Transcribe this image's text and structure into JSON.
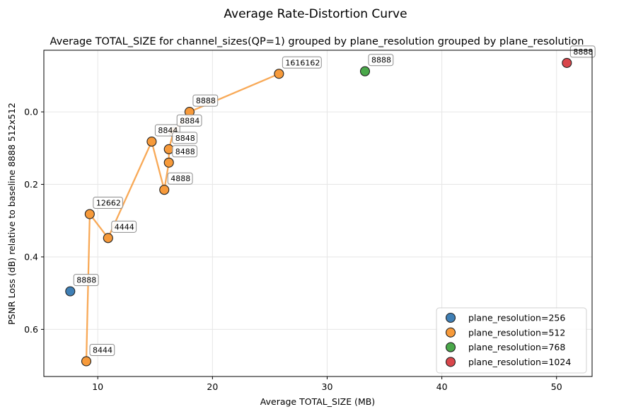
{
  "chart_data": {
    "type": "scatter",
    "title": "Average Rate-Distortion Curve",
    "subtitle": "Average TOTAL_SIZE for channel_sizes(QP=1) grouped by plane_resolution grouped by plane_resolution",
    "xlabel": "Average TOTAL_SIZE (MB)",
    "ylabel": "PSNR Loss (dB) relative to baseline 8888 512x512",
    "xlim": [
      5.3,
      53.1
    ],
    "ylim": [
      0.73,
      -0.17
    ],
    "y_inverted": true,
    "x_ticks": [
      10,
      20,
      30,
      40,
      50
    ],
    "y_ticks": [
      "0.0",
      "0.2",
      "0.4",
      "0.6"
    ],
    "y_tick_values": [
      0.0,
      0.2,
      0.4,
      0.6
    ],
    "grid": true,
    "legend_position": "lower-right",
    "series": [
      {
        "name": "plane_resolution=256",
        "color": "#3f7fb5",
        "line": false,
        "points": [
          {
            "x": 7.6,
            "y": 0.495,
            "label": "8888"
          }
        ]
      },
      {
        "name": "plane_resolution=512",
        "color": "#f79a3a",
        "line": true,
        "points": [
          {
            "x": 9.0,
            "y": 0.688,
            "label": "8444"
          },
          {
            "x": 9.3,
            "y": 0.282,
            "label": "12662"
          },
          {
            "x": 10.9,
            "y": 0.348,
            "label": "4444"
          },
          {
            "x": 14.7,
            "y": 0.082,
            "label": "8844"
          },
          {
            "x": 15.8,
            "y": 0.215,
            "label": "4888"
          },
          {
            "x": 16.2,
            "y": 0.14,
            "label": "8488"
          },
          {
            "x": 16.2,
            "y": 0.103,
            "label": "8848"
          },
          {
            "x": 16.6,
            "y": 0.055,
            "label": "8884"
          },
          {
            "x": 18.0,
            "y": 0.0,
            "label": "8888"
          },
          {
            "x": 25.8,
            "y": -0.105,
            "label": "1616162"
          }
        ]
      },
      {
        "name": "plane_resolution=768",
        "color": "#4aa84a",
        "line": false,
        "points": [
          {
            "x": 33.3,
            "y": -0.112,
            "label": "8888"
          }
        ]
      },
      {
        "name": "plane_resolution=1024",
        "color": "#d9464b",
        "line": false,
        "points": [
          {
            "x": 50.9,
            "y": -0.135,
            "label": "8888"
          }
        ]
      }
    ]
  }
}
